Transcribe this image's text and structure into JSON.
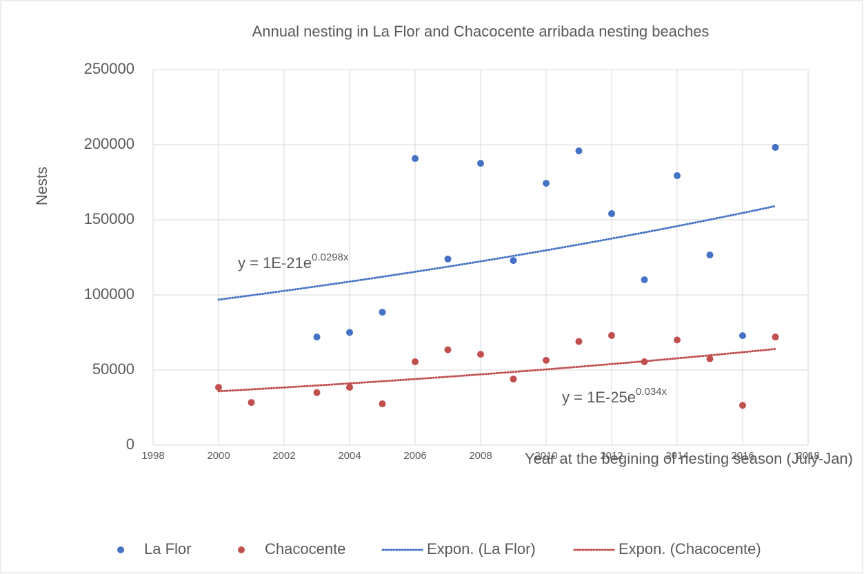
{
  "chart_data": {
    "type": "scatter",
    "title": "Annual nesting in La Flor and Chacocente arribada nesting beaches",
    "xlabel": "Year at the begining of nesting season (July-Jan)",
    "ylabel": "Nests",
    "xlim": [
      1998,
      2018
    ],
    "xticks": [
      1998,
      2000,
      2002,
      2004,
      2006,
      2008,
      2010,
      2012,
      2014,
      2016,
      2018
    ],
    "ylim": [
      0,
      250000
    ],
    "yticks": [
      0,
      50000,
      100000,
      150000,
      200000,
      250000
    ],
    "grid": true,
    "legend": "bottom",
    "series": [
      {
        "name": "La Flor",
        "color": "#4472c4",
        "x": [
          2003,
          2004,
          2005,
          2006,
          2007,
          2008,
          2009,
          2010,
          2011,
          2012,
          2013,
          2014,
          2015,
          2016,
          2017
        ],
        "values": [
          72000,
          75000,
          88500,
          190800,
          123900,
          187600,
          122900,
          174300,
          195900,
          154100,
          110100,
          179400,
          126600,
          72900,
          198200
        ],
        "trendline": {
          "name": "Expon. (La Flor)",
          "equation": "y = 1E-21e",
          "exponent": "0.0298x"
        }
      },
      {
        "name": "Chacocente",
        "color": "#c0504d",
        "x": [
          2000,
          2001,
          2003,
          2004,
          2005,
          2006,
          2007,
          2008,
          2009,
          2010,
          2011,
          2012,
          2013,
          2014,
          2015,
          2016,
          2017
        ],
        "values": [
          38500,
          28400,
          35000,
          38500,
          27500,
          55500,
          63500,
          60500,
          44000,
          56500,
          69000,
          73000,
          55500,
          70000,
          57500,
          26500,
          72000
        ],
        "trendline": {
          "name": "Expon. (Chacocente)",
          "equation": "y = 1E-25e",
          "exponent": "0.034x"
        }
      }
    ]
  }
}
